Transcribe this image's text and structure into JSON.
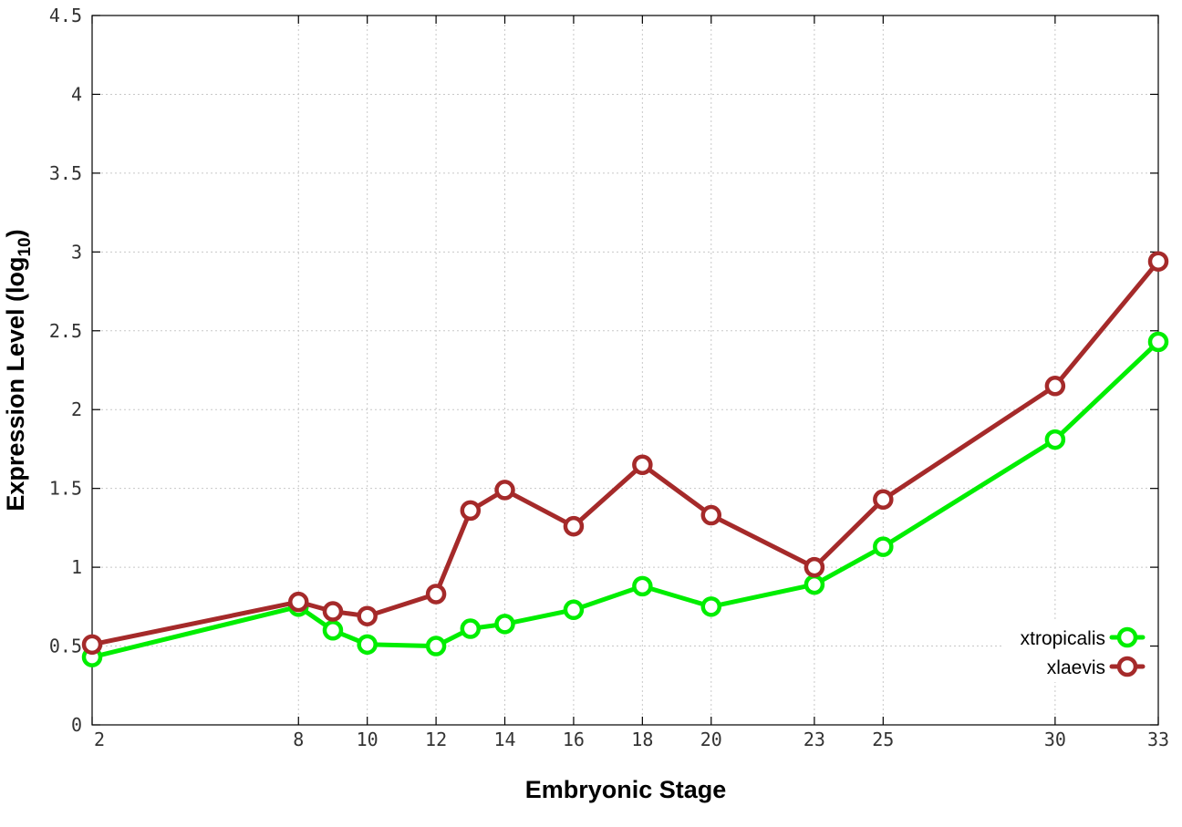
{
  "chart_data": {
    "type": "line",
    "xlabel": "Embryonic Stage",
    "ylabel_main": "Expression Level (log",
    "ylabel_sub": "10",
    "ylabel_close": ")",
    "ylim": [
      0,
      4.5
    ],
    "xlim": [
      2,
      33
    ],
    "y_ticks": [
      {
        "value": 0,
        "label": "0"
      },
      {
        "value": 0.5,
        "label": "0.5"
      },
      {
        "value": 1,
        "label": "1"
      },
      {
        "value": 1.5,
        "label": "1.5"
      },
      {
        "value": 2,
        "label": "2"
      },
      {
        "value": 2.5,
        "label": "2.5"
      },
      {
        "value": 3,
        "label": "3"
      },
      {
        "value": 3.5,
        "label": "3.5"
      },
      {
        "value": 4,
        "label": "4"
      },
      {
        "value": 4.5,
        "label": "4.5"
      }
    ],
    "x_ticks": [
      {
        "value": 2,
        "label": "2"
      },
      {
        "value": 8,
        "label": "8"
      },
      {
        "value": 10,
        "label": "10"
      },
      {
        "value": 12,
        "label": "12"
      },
      {
        "value": 14,
        "label": "14"
      },
      {
        "value": 16,
        "label": "16"
      },
      {
        "value": 18,
        "label": "18"
      },
      {
        "value": 20,
        "label": "20"
      },
      {
        "value": 23,
        "label": "23"
      },
      {
        "value": 25,
        "label": "25"
      },
      {
        "value": 30,
        "label": "30"
      },
      {
        "value": 33,
        "label": "33"
      }
    ],
    "grid": true,
    "legend_position": "bottom-right",
    "x": [
      2,
      8,
      9,
      10,
      12,
      13,
      14,
      16,
      18,
      20,
      23,
      25,
      30,
      33
    ],
    "series": [
      {
        "name": "xtropicalis",
        "color": "#00ee00",
        "values": [
          0.43,
          0.75,
          0.6,
          0.51,
          0.5,
          0.61,
          0.64,
          0.73,
          0.88,
          0.75,
          0.89,
          1.13,
          1.81,
          2.43
        ]
      },
      {
        "name": "xlaevis",
        "color": "#a52a2a",
        "values": [
          0.51,
          0.78,
          0.72,
          0.69,
          0.83,
          1.36,
          1.49,
          1.26,
          1.65,
          1.33,
          1.0,
          1.43,
          2.15,
          2.94
        ]
      }
    ]
  }
}
